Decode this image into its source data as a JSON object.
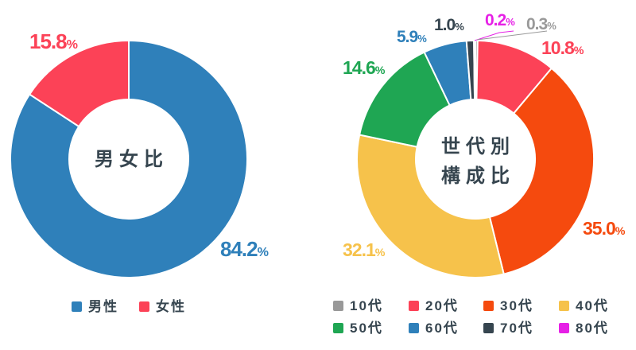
{
  "page": {
    "background": "#ffffff",
    "text_color": "#36454f"
  },
  "chart_data": [
    {
      "type": "pie",
      "subtype": "donut",
      "title": "男女比",
      "title_lines": [
        "男女比"
      ],
      "labels": [
        "男性",
        "女性"
      ],
      "ids": [
        "male",
        "female"
      ],
      "values": [
        84.2,
        15.8
      ],
      "display_values": [
        "84.2",
        "15.8"
      ],
      "unit": "%",
      "colors": [
        "#2f80ba",
        "#fc4257"
      ],
      "inner_radius_ratio": 0.5,
      "start_angle": "top",
      "direction": "clockwise",
      "legend_position": "bottom"
    },
    {
      "type": "pie",
      "subtype": "donut",
      "title": "世代別構成比",
      "title_lines": [
        "世代別",
        "構成比"
      ],
      "labels": [
        "10代",
        "20代",
        "30代",
        "40代",
        "50代",
        "60代",
        "70代",
        "80代"
      ],
      "ids": [
        "10s",
        "20s",
        "30s",
        "40s",
        "50s",
        "60s",
        "70s",
        "80s"
      ],
      "values": [
        0.3,
        10.8,
        35.0,
        32.1,
        14.6,
        5.9,
        1.0,
        0.2
      ],
      "display_values": [
        "0.3",
        "10.8",
        "35.0",
        "32.1",
        "14.6",
        "5.9",
        "1.0",
        "0.2"
      ],
      "unit": "%",
      "colors": [
        "#999999",
        "#fc4257",
        "#f54a0e",
        "#f6c24b",
        "#1fa653",
        "#2f80ba",
        "#36454f",
        "#e620e6"
      ],
      "inner_radius_ratio": 0.5,
      "start_angle": "top",
      "direction": "clockwise",
      "legend_position": "bottom",
      "leader_line_colors": {
        "80s": "#e620e6",
        "10s": "#999999"
      }
    }
  ]
}
